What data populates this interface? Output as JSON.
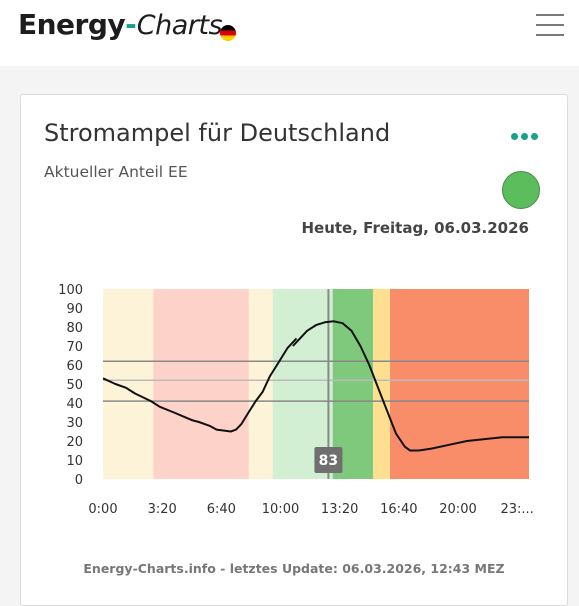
{
  "header": {
    "logo_part1": "Energy",
    "logo_dash": "-",
    "logo_part2": "Charts",
    "flag_icon": "germany-flag-icon",
    "menu_icon": "hamburger-menu-icon"
  },
  "card": {
    "title": "Stromampel für Deutschland",
    "subtitle": "Aktueller Anteil EE",
    "menu_icon": "more-dots-icon",
    "status_color": "#5cbd5c",
    "date_label": "Heute, Freitag, 06.03.2026",
    "footer": "Energy-Charts.info - letztes Update: 06.03.2026, 12:43 MEZ"
  },
  "colors": {
    "accent": "#17a28c",
    "light_yellow": "#fdf3d8",
    "light_red": "#fdd3c9",
    "light_green": "#d2eed3",
    "green": "#7ec97c",
    "yellow": "#fde08f",
    "red": "#f98d69"
  },
  "chart_data": {
    "type": "line",
    "y_ticks": [
      "0",
      "10",
      "20",
      "30",
      "40",
      "50",
      "60",
      "70",
      "80",
      "90",
      "100"
    ],
    "x_ticks": [
      "0:00",
      "3:20",
      "6:40",
      "10:00",
      "13:20",
      "16:40",
      "20:00",
      "23:..."
    ],
    "xlim": [
      0,
      24
    ],
    "ylim": [
      0,
      100
    ],
    "bands": [
      {
        "start": 0.0,
        "end": 2.83,
        "color": "#fdf3d8"
      },
      {
        "start": 2.83,
        "end": 8.22,
        "color": "#fdd3c9"
      },
      {
        "start": 8.22,
        "end": 9.56,
        "color": "#fdf3d8"
      },
      {
        "start": 9.56,
        "end": 12.94,
        "color": "#d2eed3"
      },
      {
        "start": 12.94,
        "end": 15.22,
        "color": "#7ec97c"
      },
      {
        "start": 15.22,
        "end": 16.17,
        "color": "#fde08f"
      },
      {
        "start": 16.17,
        "end": 24.0,
        "color": "#f98d69"
      }
    ],
    "hlines": [
      {
        "y": 62,
        "color": "#888888"
      },
      {
        "y": 52,
        "color": "#bbbbbb"
      },
      {
        "y": 41,
        "color": "#888888"
      }
    ],
    "current": {
      "x": 12.7,
      "value": "83"
    },
    "series": [
      {
        "segments": [
          [
            [
              0.0,
              53
            ],
            [
              0.7,
              50
            ],
            [
              1.3,
              48
            ],
            [
              1.8,
              45
            ],
            [
              2.7,
              41
            ],
            [
              3.2,
              38
            ],
            [
              4.0,
              35
            ],
            [
              4.5,
              33
            ],
            [
              5.0,
              31
            ],
            [
              5.4,
              30
            ],
            [
              6.0,
              28
            ],
            [
              6.4,
              26
            ],
            [
              7.2,
              25
            ],
            [
              7.5,
              26
            ],
            [
              7.8,
              29
            ],
            [
              8.2,
              35
            ],
            [
              8.6,
              41
            ],
            [
              9.0,
              46
            ],
            [
              9.4,
              54
            ],
            [
              9.8,
              60
            ],
            [
              10.4,
              69
            ],
            [
              10.9,
              74
            ]
          ],
          [
            [
              10.7,
              70
            ],
            [
              11.1,
              74
            ],
            [
              11.5,
              78
            ],
            [
              12.0,
              81
            ],
            [
              12.5,
              82.5
            ],
            [
              13.0,
              83
            ],
            [
              13.5,
              82
            ],
            [
              14.0,
              78
            ],
            [
              14.5,
              70
            ],
            [
              15.0,
              60
            ],
            [
              15.5,
              48
            ],
            [
              16.0,
              36
            ],
            [
              16.5,
              24
            ],
            [
              17.0,
              17
            ],
            [
              17.3,
              15
            ],
            [
              17.8,
              15
            ],
            [
              18.5,
              16
            ],
            [
              19.5,
              18
            ],
            [
              20.5,
              20
            ],
            [
              21.5,
              21
            ],
            [
              22.5,
              22
            ],
            [
              23.2,
              22
            ],
            [
              24.0,
              22
            ]
          ]
        ]
      }
    ]
  }
}
